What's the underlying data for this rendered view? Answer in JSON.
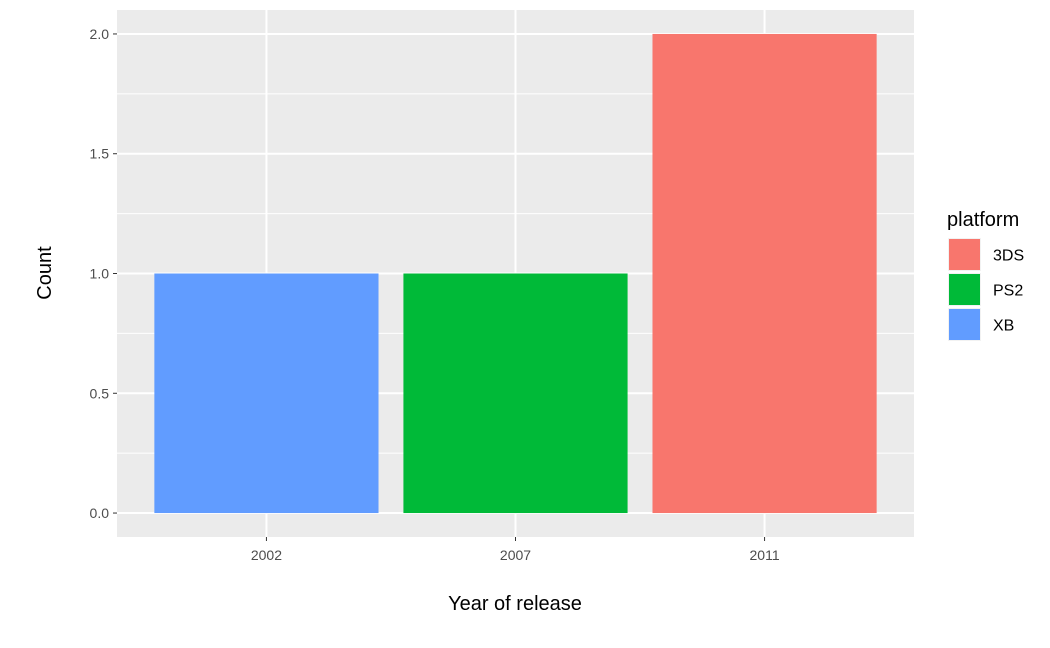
{
  "chart_data": {
    "type": "bar",
    "categories": [
      "2002",
      "2007",
      "2011"
    ],
    "bars": [
      {
        "category": "2002",
        "platform": "XB",
        "value": 1
      },
      {
        "category": "2007",
        "platform": "PS2",
        "value": 1
      },
      {
        "category": "2011",
        "platform": "3DS",
        "value": 2
      }
    ],
    "xlabel": "Year of release",
    "ylabel": "Count",
    "ylim": [
      -0.1,
      2.1
    ],
    "yticks": [
      0.0,
      0.5,
      1.0,
      1.5,
      2.0
    ],
    "ytick_labels": [
      "0.0",
      "0.5",
      "1.0",
      "1.5",
      "2.0"
    ],
    "grid": true,
    "legend": {
      "title": "platform",
      "placement": "right",
      "entries": [
        {
          "label": "3DS",
          "color": "#F8766D"
        },
        {
          "label": "PS2",
          "color": "#00BA38"
        },
        {
          "label": "XB",
          "color": "#619CFF"
        }
      ]
    },
    "colors": {
      "panel_background": "#EBEBEB",
      "grid": "#FFFFFF",
      "tick_text": "#4D4D4D",
      "tick_mark": "#333333"
    }
  }
}
